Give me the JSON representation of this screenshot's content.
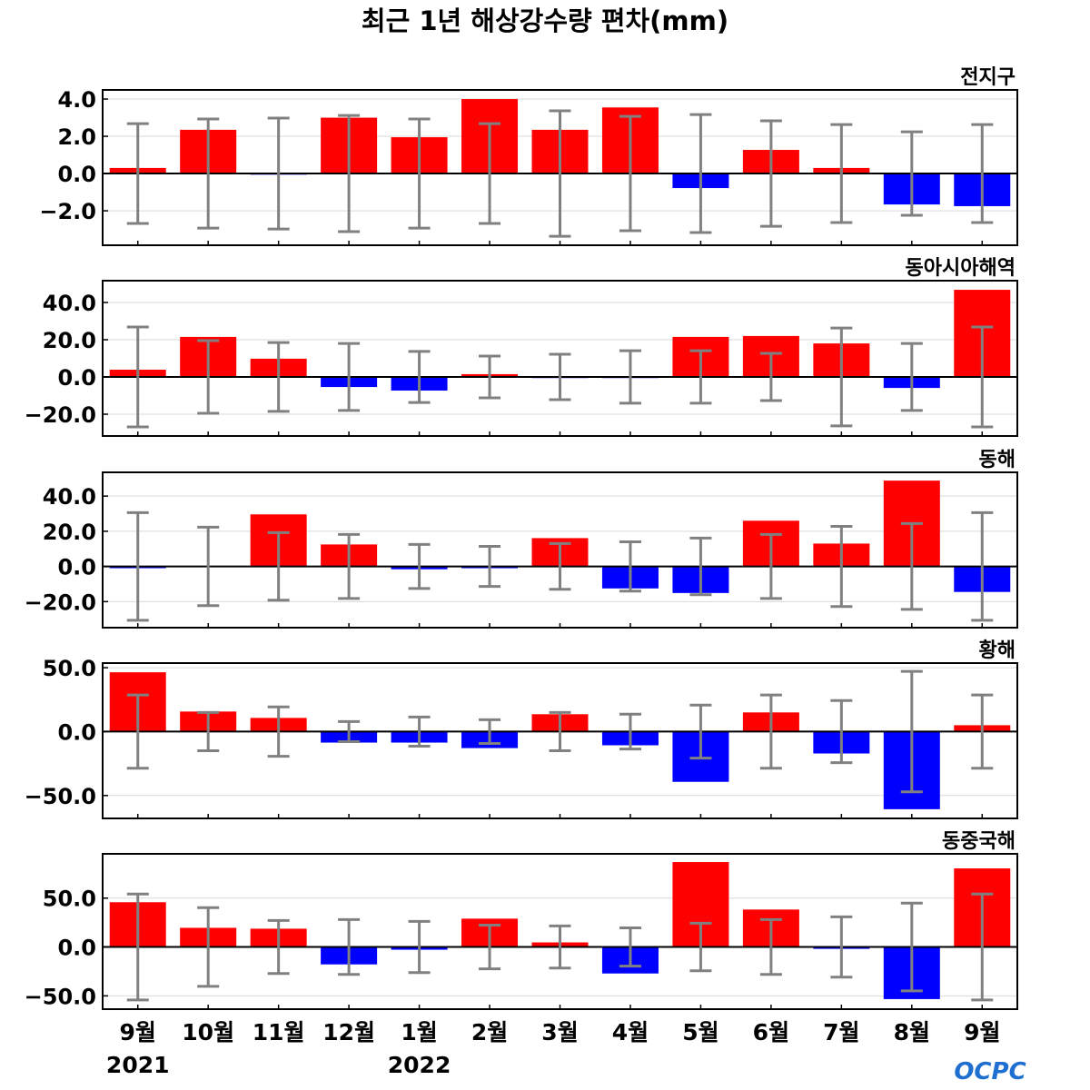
{
  "title": "최근 1년 해상강수량 편차(mm)",
  "logo": "OCPC",
  "colors": {
    "positive": "#ff0000",
    "negative": "#0000ff",
    "error_bar": "#808080",
    "grid": "#d9d9d9"
  },
  "chart_data": [
    {
      "type": "bar",
      "name": "전지구",
      "categories": [
        "9월",
        "10월",
        "11월",
        "12월",
        "1월",
        "2월",
        "3월",
        "4월",
        "5월",
        "6월",
        "7월",
        "8월",
        "9월"
      ],
      "years": [
        {
          "label": "2021",
          "category_index": 0
        },
        {
          "label": "2022",
          "category_index": 4
        }
      ],
      "values": [
        0.3,
        2.35,
        -0.05,
        3.0,
        1.95,
        4.0,
        2.35,
        3.55,
        -0.78,
        1.27,
        0.3,
        -1.66,
        -1.75
      ],
      "error": [
        2.68,
        2.93,
        2.98,
        3.12,
        2.93,
        2.68,
        3.37,
        3.07,
        3.17,
        2.83,
        2.63,
        2.24,
        2.63
      ],
      "yticks": [
        -2.0,
        0.0,
        2.0,
        4.0
      ],
      "ylim": [
        -3.85,
        4.49
      ],
      "grid": true
    },
    {
      "type": "bar",
      "name": "동아시아해역",
      "values": [
        3.9,
        21.5,
        9.8,
        -5.4,
        -7.3,
        1.5,
        -0.5,
        -0.3,
        21.5,
        22.0,
        18.0,
        -5.9,
        46.8
      ],
      "error": [
        26.8,
        19.5,
        18.5,
        18.0,
        13.7,
        11.2,
        12.2,
        14.1,
        14.1,
        12.7,
        26.3,
        18.0,
        26.8
      ],
      "yticks": [
        -20.0,
        0.0,
        20.0,
        40.0
      ],
      "ylim": [
        -31.7,
        51.7
      ],
      "grid": true
    },
    {
      "type": "bar",
      "name": "동해",
      "values": [
        -1.0,
        0.3,
        29.6,
        12.5,
        -1.6,
        -1.0,
        16.1,
        -12.5,
        -15.1,
        26.0,
        13.0,
        48.8,
        -14.5
      ],
      "error": [
        30.6,
        22.3,
        19.2,
        18.2,
        12.5,
        11.4,
        13.0,
        14.0,
        16.1,
        18.2,
        22.8,
        24.4,
        30.6
      ],
      "yticks": [
        -20.0,
        0.0,
        20.0,
        40.0
      ],
      "ylim": [
        -34.8,
        53.5
      ],
      "grid": true
    },
    {
      "type": "bar",
      "name": "황해",
      "values": [
        46.4,
        15.7,
        10.7,
        -8.6,
        -8.6,
        -12.9,
        13.6,
        -10.7,
        -39.3,
        15.0,
        -17.1,
        -60.7,
        5.0
      ],
      "error": [
        28.6,
        15.0,
        19.3,
        7.9,
        11.4,
        9.3,
        15.0,
        13.6,
        20.7,
        28.6,
        24.3,
        47.1,
        28.6
      ],
      "yticks": [
        -50.0,
        0.0,
        50.0
      ],
      "ylim": [
        -67.9,
        53.6
      ],
      "grid": true
    },
    {
      "type": "bar",
      "name": "동중국해",
      "values": [
        45.8,
        19.6,
        18.7,
        -17.8,
        -2.8,
        29.0,
        4.7,
        -27.1,
        86.9,
        38.3,
        -1.9,
        -53.3,
        80.4
      ],
      "error": [
        54.2,
        40.2,
        27.1,
        28.0,
        26.2,
        22.4,
        21.5,
        19.6,
        24.3,
        28.0,
        30.8,
        44.9,
        54.2
      ],
      "yticks": [
        -50.0,
        0.0,
        50.0
      ],
      "ylim": [
        -63.6,
        95.3
      ],
      "grid": true
    }
  ]
}
